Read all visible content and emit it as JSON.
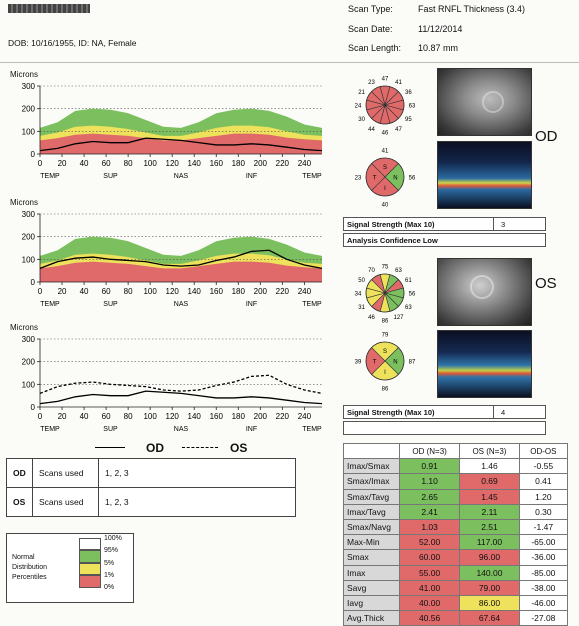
{
  "header": {
    "dob_line": "DOB: 10/16/1955, ID: NA, Female",
    "scan_type_label": "Scan Type:",
    "scan_type_value": "Fast RNFL Thickness (3.4)",
    "scan_date_label": "Scan Date:",
    "scan_date_value": "11/12/2014",
    "scan_length_label": "Scan Length:",
    "scan_length_value": "10.87 mm"
  },
  "plots": [
    {
      "title": "Microns",
      "eye": "OD"
    },
    {
      "title": "Microns",
      "eye": "OS"
    },
    {
      "title": "Microns",
      "eye": "OD-OS"
    }
  ],
  "axis": {
    "y_ticks": [
      "300",
      "200",
      "100",
      "0"
    ],
    "x_ticks": [
      "0",
      "20",
      "40",
      "60",
      "80",
      "100",
      "120",
      "140",
      "160",
      "180",
      "200",
      "220",
      "240"
    ],
    "region_labels": [
      "TEMP",
      "SUP",
      "NAS",
      "INF",
      "TEMP"
    ]
  },
  "chart_data": [
    {
      "type": "area",
      "title": "Microns",
      "eye": "OD",
      "x": [
        0,
        16,
        32,
        48,
        64,
        80,
        96,
        112,
        128,
        144,
        160,
        176,
        192,
        208,
        224,
        240,
        256
      ],
      "ylim": [
        0,
        300
      ],
      "xlim": [
        0,
        256
      ],
      "bands": {
        "p95": [
          115,
          140,
          190,
          200,
          195,
          180,
          150,
          120,
          115,
          140,
          180,
          195,
          200,
          190,
          165,
          130,
          115
        ],
        "p5": [
          80,
          95,
          120,
          125,
          120,
          110,
          95,
          80,
          80,
          95,
          115,
          125,
          125,
          118,
          100,
          85,
          80
        ],
        "p1": [
          60,
          70,
          85,
          90,
          85,
          80,
          70,
          60,
          60,
          70,
          80,
          90,
          90,
          85,
          72,
          65,
          60
        ]
      },
      "series": [
        {
          "name": "OD",
          "values": [
            15,
            25,
            45,
            55,
            50,
            50,
            70,
            65,
            60,
            50,
            40,
            40,
            45,
            40,
            30,
            20,
            15
          ]
        }
      ]
    },
    {
      "type": "area",
      "title": "Microns",
      "eye": "OS",
      "x": [
        0,
        16,
        32,
        48,
        64,
        80,
        96,
        112,
        128,
        144,
        160,
        176,
        192,
        208,
        224,
        240,
        256
      ],
      "ylim": [
        0,
        300
      ],
      "xlim": [
        0,
        256
      ],
      "bands": {
        "p95": [
          115,
          140,
          190,
          200,
          195,
          180,
          150,
          120,
          115,
          140,
          180,
          195,
          200,
          190,
          165,
          130,
          115
        ],
        "p5": [
          80,
          95,
          120,
          125,
          120,
          110,
          95,
          80,
          80,
          95,
          115,
          125,
          125,
          118,
          100,
          85,
          80
        ],
        "p1": [
          60,
          70,
          85,
          90,
          85,
          80,
          70,
          60,
          60,
          70,
          80,
          90,
          90,
          85,
          72,
          65,
          60
        ]
      },
      "series": [
        {
          "name": "OS",
          "values": [
            60,
            90,
            105,
            110,
            100,
            95,
            90,
            75,
            70,
            75,
            95,
            110,
            135,
            140,
            100,
            75,
            60
          ]
        }
      ]
    },
    {
      "type": "line",
      "title": "Microns",
      "x": [
        0,
        16,
        32,
        48,
        64,
        80,
        96,
        112,
        128,
        144,
        160,
        176,
        192,
        208,
        224,
        240,
        256
      ],
      "ylim": [
        0,
        300
      ],
      "xlim": [
        0,
        256
      ],
      "series": [
        {
          "name": "OD",
          "values": [
            15,
            25,
            45,
            55,
            50,
            50,
            70,
            65,
            60,
            50,
            40,
            40,
            45,
            40,
            30,
            20,
            15
          ]
        },
        {
          "name": "OS",
          "values": [
            60,
            90,
            105,
            110,
            100,
            95,
            90,
            75,
            70,
            75,
            95,
            110,
            135,
            140,
            100,
            75,
            60
          ]
        }
      ]
    }
  ],
  "legend_lines": {
    "od": "OD",
    "os": "OS"
  },
  "clocks": {
    "od_12": {
      "values": [
        "47",
        "41",
        "36",
        "63",
        "95",
        "47",
        "46",
        "44",
        "30",
        "24",
        "21",
        "23"
      ]
    },
    "od_4": {
      "values": [
        "41",
        "56",
        "40",
        "23"
      ],
      "letters": [
        "S",
        "N",
        "I",
        "T"
      ]
    },
    "os_12": {
      "values": [
        "75",
        "63",
        "61",
        "56",
        "63",
        "127",
        "86",
        "46",
        "31",
        "34",
        "50",
        "70"
      ]
    },
    "os_4": {
      "values": [
        "79",
        "87",
        "86",
        "39"
      ],
      "letters": [
        "S",
        "N",
        "I",
        "T"
      ]
    }
  },
  "clock_colors": {
    "od_12": [
      "#e06a6a",
      "#e06a6a",
      "#e06a6a",
      "#e06a6a",
      "#e06a6a",
      "#e06a6a",
      "#e06a6a",
      "#e06a6a",
      "#e06a6a",
      "#e06a6a",
      "#e06a6a",
      "#e06a6a"
    ],
    "od_4": [
      "#e06a6a",
      "#7bbf5e",
      "#e06a6a",
      "#e06a6a"
    ],
    "os_12": [
      "#eee25c",
      "#7bbf5e",
      "#e06a6a",
      "#7bbf5e",
      "#7bbf5e",
      "#7bbf5e",
      "#eee25c",
      "#e06a6a",
      "#eee25c",
      "#eee25c",
      "#eee25c",
      "#e06a6a"
    ],
    "os_4": [
      "#eee25c",
      "#7bbf5e",
      "#eee25c",
      "#e06a6a"
    ]
  },
  "signal": {
    "od_label": "Signal Strength (Max 10)",
    "od_value": "3",
    "od_confidence": "Analysis Confidence Low",
    "os_label": "Signal Strength (Max 10)",
    "os_value": "4"
  },
  "scans_table": [
    {
      "eye": "OD",
      "label": "Scans used",
      "value": "1, 2, 3"
    },
    {
      "eye": "OS",
      "label": "Scans used",
      "value": "1, 2, 3"
    }
  ],
  "legend": {
    "title_lines": [
      "Normal",
      "Distribution",
      "Percentiles"
    ],
    "levels": [
      "100%",
      "95%",
      "5%",
      "1%",
      "0%"
    ],
    "colors": [
      "#ffffff",
      "#7bbf5e",
      "#eee25c",
      "#e06a6a"
    ]
  },
  "stats": {
    "headers": [
      "",
      "OD (N=3)",
      "OS (N=3)",
      "OD-OS"
    ],
    "rows": [
      {
        "label": "Imax/Smax",
        "od": "0.91",
        "os": "1.46",
        "diff": "-0.55",
        "od_c": "green",
        "os_c": "white"
      },
      {
        "label": "Smax/Imax",
        "od": "1.10",
        "os": "0.69",
        "diff": "0.41",
        "od_c": "green",
        "os_c": "red"
      },
      {
        "label": "Smax/Tavg",
        "od": "2.65",
        "os": "1.45",
        "diff": "1.20",
        "od_c": "green",
        "os_c": "red"
      },
      {
        "label": "Imax/Tavg",
        "od": "2.41",
        "os": "2.11",
        "diff": "0.30",
        "od_c": "green",
        "os_c": "green"
      },
      {
        "label": "Smax/Navg",
        "od": "1.03",
        "os": "2.51",
        "diff": "-1.47",
        "od_c": "red",
        "os_c": "green"
      },
      {
        "label": "Max-Min",
        "od": "52.00",
        "os": "117.00",
        "diff": "-65.00",
        "od_c": "red",
        "os_c": "green"
      },
      {
        "label": "Smax",
        "od": "60.00",
        "os": "96.00",
        "diff": "-36.00",
        "od_c": "red",
        "os_c": "red"
      },
      {
        "label": "Imax",
        "od": "55.00",
        "os": "140.00",
        "diff": "-85.00",
        "od_c": "red",
        "os_c": "green"
      },
      {
        "label": "Savg",
        "od": "41.00",
        "os": "79.00",
        "diff": "-38.00",
        "od_c": "red",
        "os_c": "red"
      },
      {
        "label": "Iavg",
        "od": "40.00",
        "os": "86.00",
        "diff": "-46.00",
        "od_c": "red",
        "os_c": "yellow"
      },
      {
        "label": "Avg.Thick",
        "od": "40.56",
        "os": "67.64",
        "diff": "-27.08",
        "od_c": "red",
        "os_c": "red"
      }
    ]
  },
  "colors": {
    "green": "#7bbf5e",
    "yellow": "#eee25c",
    "red": "#e06a6a",
    "od_line": "#000000",
    "os_line": "#000000"
  },
  "icons": {
    "fundus_od": "fundus-image",
    "oct_od": "oct-scan-image",
    "fundus_os": "fundus-image",
    "oct_os": "oct-scan-image"
  }
}
